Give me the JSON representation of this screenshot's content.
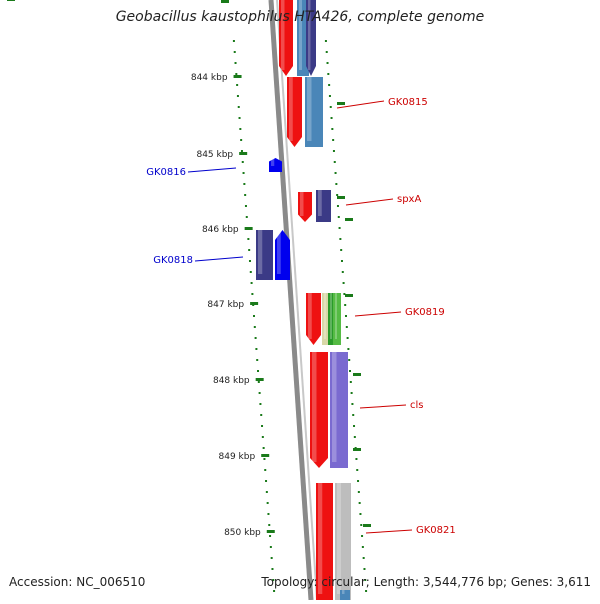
{
  "title": "Geobacillus kaustophilus HTA426, complete genome",
  "accession_text": "Accession: NC_006510",
  "topology_text": "Topology: circular; Length: 3,544,776 bp; Genes: 3,611",
  "colors": {
    "backbone": "#8a8a8a",
    "tick": "#1a7a1a",
    "forward_label": "#cc0000",
    "reverse_label": "#0000cc",
    "red_gene": "#ee1111",
    "blue_gene": "#0000ee",
    "navy_gene": "#3b3a86",
    "steel_gene": "#4a86b8",
    "purple_gene": "#7a6ad0",
    "green_gene": "#2a9a2a",
    "silver_gene": "#bdbdbd",
    "tan_gene": "#d8d8a8"
  },
  "scale_labels": [
    "844 kbp",
    "845 kbp",
    "846 kbp",
    "847 kbp",
    "848 kbp",
    "849 kbp",
    "850 kbp"
  ],
  "gene_labels": [
    {
      "name": "GK0815",
      "strand": "forward"
    },
    {
      "name": "GK0816",
      "strand": "reverse"
    },
    {
      "name": "spxA",
      "strand": "forward"
    },
    {
      "name": "GK0818",
      "strand": "reverse"
    },
    {
      "name": "GK0819",
      "strand": "forward"
    },
    {
      "name": "cls",
      "strand": "forward"
    },
    {
      "name": "GK0821",
      "strand": "forward"
    }
  ]
}
